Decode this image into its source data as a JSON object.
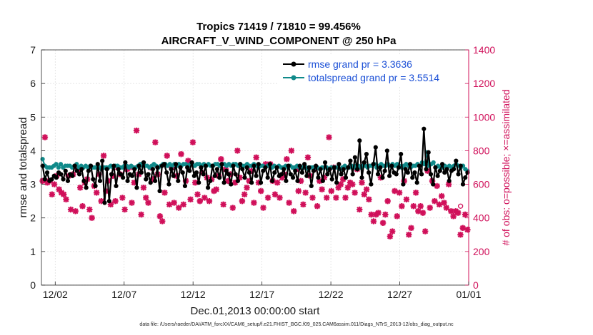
{
  "chart_data": {
    "type": "line",
    "title": "Tropics 71419 / 71810 = 99.456%",
    "subtitle": "AIRCRAFT_V_WIND_COMPONENT @ 250 hPa",
    "xlabel": "Dec.01,2013 00:00:00 start",
    "ylabel": "rmse and totalspread",
    "y2label": "# of obs: o=possible; ×=assimilated",
    "xlim": [
      0,
      31
    ],
    "ylim": [
      0,
      7
    ],
    "y2lim": [
      0,
      1400
    ],
    "x_ticks": [
      {
        "pos": 1,
        "label": "12/02"
      },
      {
        "pos": 6,
        "label": "12/07"
      },
      {
        "pos": 11,
        "label": "12/12"
      },
      {
        "pos": 16,
        "label": "12/17"
      },
      {
        "pos": 21,
        "label": "12/22"
      },
      {
        "pos": 26,
        "label": "12/27"
      },
      {
        "pos": 31,
        "label": "01/01"
      }
    ],
    "y_ticks": [
      "0",
      "1",
      "2",
      "3",
      "4",
      "5",
      "6",
      "7"
    ],
    "y2_ticks": [
      "0",
      "200",
      "400",
      "600",
      "800",
      "1000",
      "1200",
      "1400"
    ],
    "grid": true,
    "legend_position": "top-right",
    "series": [
      {
        "name": "rmse grand pr = 3.3636",
        "color": "#000000",
        "axis": "left",
        "values": [
          3.55,
          3.15,
          3.35,
          3.1,
          3.15,
          3.25,
          3.2,
          3.35,
          3.3,
          3.15,
          3.4,
          3.1,
          3.3,
          3.25,
          3.55,
          3.4,
          3.3,
          3.45,
          3.1,
          2.9,
          3.4,
          3.55,
          3.15,
          2.95,
          3.6,
          3.1,
          3.7,
          2.45,
          3.45,
          2.5,
          3.3,
          3.55,
          2.95,
          3.45,
          3.3,
          3.2,
          3.65,
          3.1,
          3.3,
          3.25,
          3.45,
          2.9,
          3.55,
          3.35,
          3.65,
          3.15,
          3.3,
          3.05,
          3.45,
          3.1,
          3.5,
          2.8,
          3.55,
          3.6,
          3.35,
          3.0,
          3.45,
          3.25,
          3.6,
          3.1,
          3.5,
          3.35,
          2.95,
          3.5,
          3.4,
          3.65,
          3.25,
          3.35,
          3.05,
          3.5,
          3.3,
          3.55,
          2.9,
          3.1,
          3.55,
          3.25,
          3.45,
          3.2,
          3.6,
          3.05,
          3.4,
          3.3,
          3.0,
          3.55,
          3.3,
          3.1,
          3.6,
          3.45,
          3.2,
          3.5,
          3.35,
          3.05,
          3.55,
          3.25,
          3.6,
          3.05,
          3.4,
          3.5,
          3.2,
          3.6,
          3.1,
          3.35,
          3.5,
          3.25,
          3.3,
          3.45,
          3.1,
          3.55,
          3.3,
          3.2,
          3.4,
          3.1,
          3.55,
          3.35,
          3.6,
          3.25,
          3.5,
          2.95,
          3.4,
          3.55,
          3.2,
          3.45,
          3.1,
          3.65,
          3.3,
          3.45,
          3.15,
          3.5,
          3.05,
          3.6,
          3.3,
          3.45,
          3.2,
          3.5,
          3.7,
          3.3,
          3.8,
          3.45,
          4.3,
          3.2,
          3.65,
          3.9,
          3.35,
          3.0,
          3.6,
          4.1,
          3.3,
          3.5,
          3.2,
          3.4,
          4.0,
          3.25,
          3.55,
          3.35,
          3.3,
          3.5,
          3.9,
          3.0,
          3.45,
          3.35,
          3.6,
          3.2,
          3.35,
          3.05,
          3.55,
          3.3,
          4.65,
          3.45,
          3.95,
          3.3,
          3.0,
          3.5,
          3.25,
          3.4,
          3.6,
          3.35,
          3.45,
          3.1,
          3.4,
          3.45,
          3.7,
          3.3,
          3.55,
          3.0,
          3.2,
          3.35
        ]
      },
      {
        "name": "totalspread grand pr = 3.5514",
        "color": "#108a8a",
        "axis": "left",
        "values": [
          3.75,
          3.55,
          3.5,
          3.5,
          3.5,
          3.55,
          3.6,
          3.5,
          3.6,
          3.5,
          3.55,
          3.55,
          3.55,
          3.5,
          3.55,
          3.6,
          3.5,
          3.55,
          3.5,
          3.55,
          3.5,
          3.55,
          3.5,
          3.5,
          3.5,
          3.5,
          3.45,
          3.5,
          3.5,
          3.5,
          3.55,
          3.5,
          3.55,
          3.55,
          3.5,
          3.5,
          3.55,
          3.55,
          3.5,
          3.55,
          3.5,
          3.5,
          3.55,
          3.6,
          3.55,
          3.55,
          3.55,
          3.5,
          3.55,
          3.6,
          3.55,
          3.5,
          3.55,
          3.6,
          3.6,
          3.55,
          3.6,
          3.55,
          3.6,
          3.55,
          3.6,
          3.55,
          3.6,
          3.6,
          3.55,
          3.6,
          3.6,
          3.55,
          3.6,
          3.6,
          3.55,
          3.6,
          3.55,
          3.6,
          3.55,
          3.55,
          3.6,
          3.6,
          3.55,
          3.6,
          3.6,
          3.55,
          3.6,
          3.55,
          3.6,
          3.6,
          3.55,
          3.6,
          3.55,
          3.55,
          3.6,
          3.55,
          3.55,
          3.6,
          3.55,
          3.5,
          3.55,
          3.55,
          3.5,
          3.55,
          3.55,
          3.5,
          3.55,
          3.5,
          3.55,
          3.5,
          3.5,
          3.55,
          3.5,
          3.55,
          3.5,
          3.5,
          3.55,
          3.5,
          3.5,
          3.5,
          3.5,
          3.45,
          3.5,
          3.5,
          3.5,
          3.5,
          3.45,
          3.5,
          3.5,
          3.5,
          3.45,
          3.5,
          3.5,
          3.5,
          3.5,
          3.45,
          3.5,
          3.55,
          3.5,
          3.5,
          3.55,
          3.5,
          3.55,
          3.55,
          3.5,
          3.55,
          3.55,
          3.5,
          3.55,
          3.55,
          3.6,
          3.5,
          3.55,
          3.6,
          3.55,
          3.55,
          3.6,
          3.55,
          3.6,
          3.55,
          3.6,
          3.55,
          3.5,
          3.55,
          3.6,
          3.55,
          3.5,
          3.55,
          3.55,
          3.6,
          3.55,
          3.65,
          3.6,
          3.95,
          3.55,
          3.6,
          3.65,
          3.5,
          3.55,
          3.5,
          3.5,
          3.55,
          3.5,
          3.55,
          3.5,
          3.55,
          3.6,
          3.55,
          3.5,
          3.55,
          3.45,
          3.4
        ]
      },
      {
        "name": "assimilated",
        "color": "#d0105a",
        "axis": "right",
        "values": [
          620,
          880,
          610,
          620,
          540,
          600,
          650,
          570,
          550,
          540,
          510,
          650,
          450,
          660,
          440,
          690,
          580,
          470,
          610,
          630,
          450,
          400,
          590,
          550,
          660,
          500,
          770,
          560,
          620,
          480,
          650,
          500,
          700,
          660,
          520,
          450,
          690,
          700,
          490,
          610,
          920,
          660,
          420,
          580,
          520,
          490,
          700,
          630,
          850,
          660,
          410,
          380,
          550,
          770,
          480,
          700,
          490,
          650,
          460,
          780,
          480,
          620,
          740,
          510,
          850,
          610,
          540,
          500,
          670,
          520,
          640,
          500,
          630,
          560,
          570,
          650,
          750,
          480,
          690,
          620,
          660,
          460,
          610,
          800,
          640,
          500,
          540,
          580,
          620,
          680,
          490,
          760,
          610,
          560,
          460,
          720,
          520,
          720,
          620,
          540,
          610,
          520,
          640,
          660,
          750,
          490,
          800,
          440,
          690,
          560,
          620,
          480,
          550,
          760,
          650,
          520,
          690,
          470,
          620,
          570,
          640,
          520,
          880,
          560,
          700,
          520,
          580,
          600,
          630,
          520,
          580,
          610,
          600,
          550,
          690,
          450,
          610,
          540,
          570,
          510,
          420,
          380,
          420,
          430,
          640,
          370,
          420,
          500,
          290,
          320,
          560,
          410,
          550,
          470,
          620,
          510,
          300,
          340,
          470,
          550,
          440,
          470,
          430,
          320,
          680,
          460,
          620,
          500,
          590,
          480,
          530,
          490,
          460,
          600,
          440,
          410,
          440,
          430,
          300,
          340,
          420,
          330
        ]
      },
      {
        "name": "possible",
        "color": "#d0105a",
        "axis": "right",
        "values": [
          null,
          null,
          null,
          null,
          null,
          null,
          null,
          null,
          null,
          null,
          null,
          null,
          null,
          null,
          null,
          null,
          null,
          null,
          null,
          null,
          null,
          null,
          null,
          null,
          null,
          null,
          null,
          null,
          null,
          null,
          null,
          null,
          null,
          null,
          null,
          null,
          null,
          null,
          null,
          null,
          null,
          null,
          null,
          null,
          null,
          null,
          null,
          null,
          null,
          null,
          null,
          null,
          null,
          null,
          null,
          null,
          null,
          null,
          null,
          null,
          null,
          null,
          null,
          null,
          null,
          null,
          null,
          null,
          null,
          null,
          null,
          null,
          null,
          null,
          null,
          null,
          null,
          null,
          null,
          null,
          null,
          null,
          null,
          null,
          null,
          null,
          null,
          null,
          null,
          null,
          null,
          null,
          null,
          null,
          null,
          null,
          null,
          null,
          null,
          null,
          null,
          null,
          null,
          null,
          null,
          null,
          null,
          null,
          null,
          null,
          null,
          null,
          null,
          null,
          null,
          null,
          null,
          null,
          null,
          null,
          null,
          null,
          null,
          null,
          null,
          null,
          null,
          null,
          null,
          null,
          null,
          null,
          null,
          null,
          null,
          null,
          null,
          null,
          null,
          null,
          null,
          null,
          null,
          null,
          null,
          null,
          null,
          null,
          null,
          null,
          null,
          null,
          null,
          null,
          null,
          null,
          null,
          null,
          null,
          null,
          null,
          null,
          null,
          null,
          null,
          null,
          null,
          null,
          null,
          null,
          null,
          null,
          null,
          null,
          null,
          null,
          null,
          null,
          null,
          null,
          470,
          null,
          null,
          null
        ]
      }
    ],
    "legend": [
      {
        "label": "rmse grand pr = 3.3636",
        "color": "#000000"
      },
      {
        "label": "totalspread grand pr = 3.5514",
        "color": "#108a8a"
      }
    ],
    "footnote": "data file: /Users/raeder/DAI/ATM_forcXX/CAM6_setup/f.e21.FHIST_BGC.f09_025.CAM6assim.011/Diags_NTrS_2013-12/obs_diag_output.nc"
  }
}
